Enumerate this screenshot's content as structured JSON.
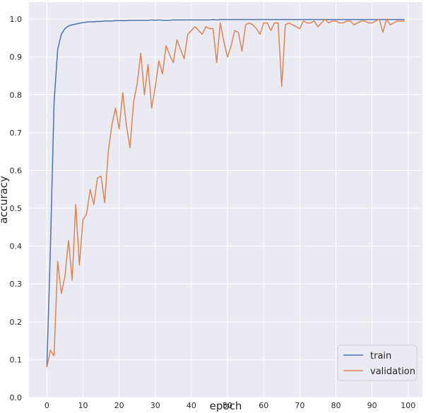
{
  "chart_data": {
    "type": "line",
    "title": "",
    "xlabel": "epoch",
    "ylabel": "accuracy",
    "xlim": [
      -4.95,
      103.95
    ],
    "ylim": [
      0.0,
      1.045
    ],
    "xticks": [
      0,
      10,
      20,
      30,
      40,
      50,
      60,
      70,
      80,
      90,
      100
    ],
    "yticks": [
      0.0,
      0.1,
      0.2,
      0.3,
      0.4,
      0.5,
      0.6,
      0.7,
      0.8,
      0.9,
      1.0
    ],
    "xtick_labels": [
      "0",
      "10",
      "20",
      "30",
      "40",
      "50",
      "60",
      "70",
      "80",
      "90",
      "100"
    ],
    "ytick_labels": [
      "0.0",
      "0.1",
      "0.2",
      "0.3",
      "0.4",
      "0.5",
      "0.6",
      "0.7",
      "0.8",
      "0.9",
      "1.0"
    ],
    "grid": true,
    "legend_position": "bottom-right",
    "background": "#eaeaf2",
    "series": [
      {
        "name": "train",
        "color": "#4c72b0",
        "values": [
          0.08,
          0.4,
          0.78,
          0.92,
          0.96,
          0.975,
          0.982,
          0.985,
          0.987,
          0.989,
          0.991,
          0.992,
          0.993,
          0.993,
          0.994,
          0.994,
          0.995,
          0.995,
          0.995,
          0.996,
          0.996,
          0.996,
          0.996,
          0.997,
          0.997,
          0.997,
          0.997,
          0.997,
          0.997,
          0.998,
          0.997,
          0.998,
          0.997,
          0.997,
          0.997,
          0.998,
          0.998,
          0.998,
          0.998,
          0.998,
          0.998,
          0.998,
          0.998,
          0.998,
          0.998,
          0.998,
          0.999,
          0.998,
          0.999,
          0.999,
          0.999,
          0.999,
          0.999,
          0.999,
          0.999,
          0.999,
          0.999,
          0.999,
          0.999,
          0.999,
          0.999,
          0.999,
          0.999,
          0.999,
          0.999,
          0.999,
          0.999,
          0.999,
          0.999,
          0.999,
          0.999,
          0.999,
          0.999,
          0.999,
          0.999,
          0.999,
          0.999,
          0.999,
          0.999,
          0.999,
          0.999,
          0.999,
          0.999,
          0.999,
          0.999,
          0.999,
          0.999,
          0.999,
          0.999,
          0.999,
          0.999,
          0.999,
          0.999,
          0.999,
          0.999,
          0.999,
          0.999,
          0.999,
          0.999,
          0.999
        ]
      },
      {
        "name": "validation",
        "color": "#dd8452",
        "values": [
          0.08,
          0.125,
          0.11,
          0.36,
          0.275,
          0.32,
          0.415,
          0.31,
          0.51,
          0.35,
          0.47,
          0.485,
          0.55,
          0.51,
          0.58,
          0.585,
          0.515,
          0.65,
          0.72,
          0.765,
          0.71,
          0.805,
          0.72,
          0.66,
          0.78,
          0.83,
          0.91,
          0.8,
          0.88,
          0.765,
          0.82,
          0.89,
          0.855,
          0.93,
          0.905,
          0.885,
          0.945,
          0.92,
          0.895,
          0.96,
          0.97,
          0.98,
          0.97,
          0.96,
          0.98,
          0.975,
          0.975,
          0.885,
          0.99,
          0.94,
          0.9,
          0.93,
          0.97,
          0.965,
          0.915,
          0.985,
          0.99,
          0.985,
          0.975,
          0.96,
          0.99,
          0.99,
          0.97,
          0.99,
          0.99,
          0.822,
          0.985,
          0.99,
          0.985,
          0.98,
          0.975,
          0.995,
          0.99,
          0.99,
          0.995,
          0.98,
          0.99,
          1.0,
          0.99,
          0.995,
          0.995,
          0.99,
          0.99,
          0.995,
          0.995,
          0.985,
          0.99,
          0.995,
          0.995,
          0.99,
          0.99,
          0.995,
          1.0,
          0.965,
          1.0,
          0.985,
          0.99,
          0.995,
          0.995,
          0.995
        ]
      }
    ]
  }
}
